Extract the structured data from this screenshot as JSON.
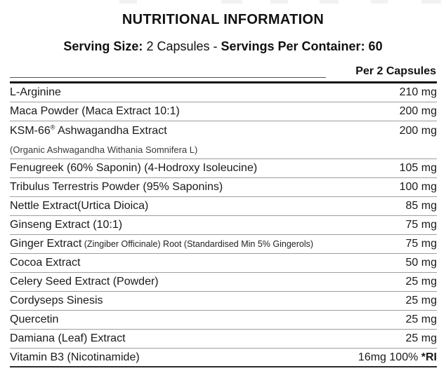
{
  "label": {
    "title": "NUTRITIONAL INFORMATION",
    "serving_line": {
      "size_label": "Serving Size:",
      "size_value": "2 Capsules",
      "dash": "-",
      "container_label": "Servings Per Container: 60"
    },
    "column_header": "Per 2 Capsules",
    "rows": [
      {
        "name": "L-Arginine",
        "amount": "210 mg"
      },
      {
        "name": "Maca Powder (Maca Extract 10:1)",
        "amount": "200 mg"
      },
      {
        "name": "KSM-66",
        "name_sup": "®",
        "name_after": " Ashwagandha Extract",
        "subtext": "(Organic Ashwagandha Withania Somnifera L)",
        "amount": "200 mg"
      },
      {
        "name": "Fenugreek (60% Saponin) (4-Hodroxy Isoleucine)",
        "amount": "105 mg"
      },
      {
        "name": "Tribulus Terrestris Powder (95% Saponins)",
        "amount": "100 mg"
      },
      {
        "name": "Nettle Extract(Urtica Dioica)",
        "amount": "85 mg"
      },
      {
        "name": "Ginseng Extract (10:1)",
        "amount": "75 mg"
      },
      {
        "name": "Ginger Extract",
        "name_small": " (Zingiber Officinale) Root (Standardised Min 5% Gingerols)",
        "amount": "75 mg"
      },
      {
        "name": "Cocoa Extract",
        "amount": "50 mg"
      },
      {
        "name": "Celery Seed Extract (Powder)",
        "amount": "25 mg"
      },
      {
        "name": "Cordyseps Sinesis",
        "amount": "25 mg"
      },
      {
        "name": "Quercetin",
        "amount": "25 mg"
      },
      {
        "name": "Damiana (Leaf) Extract",
        "amount": "25 mg"
      },
      {
        "name": "Vitamin B3 (Nicotinamide)",
        "amount": "16mg 100% ",
        "amount_bold": "*RI"
      }
    ],
    "colors": {
      "text": "#1a1a1a",
      "separator": "#9e9e9e",
      "heavy_rule": "#141414"
    }
  }
}
